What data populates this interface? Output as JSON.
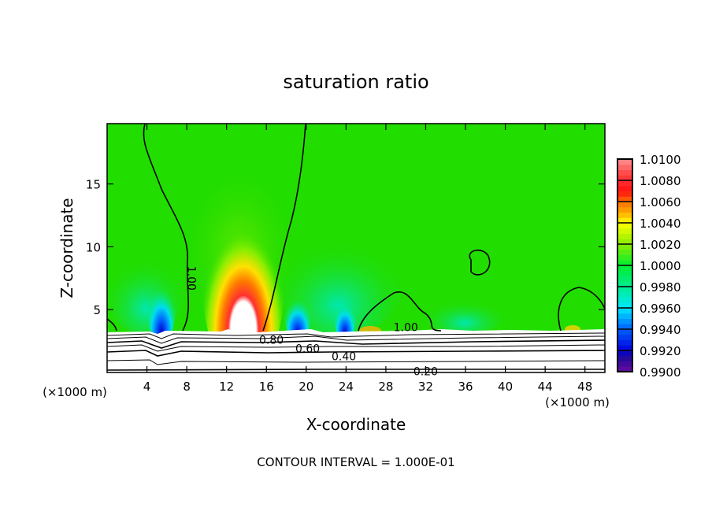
{
  "chart_data": {
    "type": "heatmap",
    "subtype": "filled contour",
    "title": "saturation ratio",
    "xlabel": "X-coordinate",
    "ylabel": "Z-coordinate",
    "x_unit_label": "(×1000 m)",
    "y_unit_label": "(×1000 m)",
    "xlim": [
      0,
      50
    ],
    "ylim": [
      0,
      19.8
    ],
    "xticks": [
      4,
      8,
      12,
      16,
      20,
      24,
      28,
      32,
      36,
      40,
      44,
      48
    ],
    "yticks": [
      5,
      10,
      15
    ],
    "colorbar": {
      "min": 0.99,
      "max": 1.01,
      "step": 0.001,
      "labels": [
        "1.0100",
        "1.0080",
        "1.0060",
        "1.0040",
        "1.0020",
        "1.0000",
        "0.9980",
        "0.9960",
        "0.9940",
        "0.9920",
        "0.9900"
      ]
    },
    "contour_labels": [
      {
        "text": "1.00",
        "x": 8.5,
        "z": 7.5
      },
      {
        "text": "1.00",
        "x": 30,
        "z": 3.6
      },
      {
        "text": "0.80",
        "x": 16.5,
        "z": 2.6
      },
      {
        "text": "0.60",
        "x": 16.5,
        "z": 1.9
      },
      {
        "text": "0.40",
        "x": 16.5,
        "z": 1.3
      },
      {
        "text": "0.20",
        "x": 32,
        "z": 0.1
      }
    ],
    "features": [
      {
        "type": "max",
        "x": 13.5,
        "z": 5.5,
        "value": ">1.0100"
      },
      {
        "type": "min",
        "x": 5.5,
        "z": 4,
        "value": 0.992
      },
      {
        "type": "min",
        "x": 19,
        "z": 4,
        "value": 0.993
      },
      {
        "type": "min",
        "x": 24,
        "z": 4,
        "value": 0.993
      }
    ],
    "footer": "CONTOUR INTERVAL = 1.000E-01"
  }
}
